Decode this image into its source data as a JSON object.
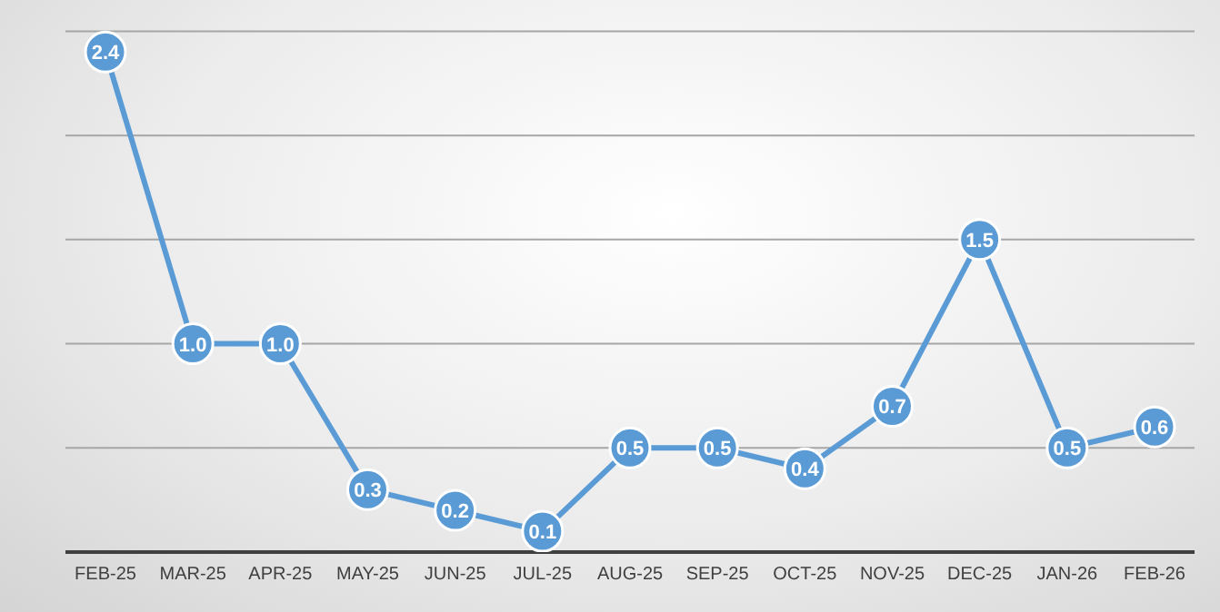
{
  "chart_data": {
    "type": "line",
    "categories": [
      "FEB-25",
      "MAR-25",
      "APR-25",
      "MAY-25",
      "JUN-25",
      "JUL-25",
      "AUG-25",
      "SEP-25",
      "OCT-25",
      "NOV-25",
      "DEC-25",
      "JAN-26",
      "FEB-26"
    ],
    "series": [
      {
        "color": "#5b9bd5",
        "values": [
          2.4,
          1.0,
          1.0,
          0.3,
          0.2,
          0.1,
          0.5,
          0.5,
          0.4,
          0.7,
          1.5,
          0.5,
          0.6
        ],
        "value_labels": [
          "2.4",
          "1.0",
          "1.0",
          "0.3",
          "0.2",
          "0.1",
          "0.5",
          "0.5",
          "0.4",
          "0.7",
          "1.5",
          "0.5",
          "0.6"
        ]
      }
    ],
    "ylim": [
      0,
      2.65
    ],
    "yticks": [
      {
        "value": 0,
        "label": null
      },
      {
        "value": 0.5,
        "label": null
      },
      {
        "value": 1,
        "label": null
      },
      {
        "value": 1.5,
        "label": null
      },
      {
        "value": 2,
        "label": null
      },
      {
        "value": 2.5,
        "label": null
      }
    ],
    "grid": "y",
    "tick_labels": "x",
    "marker": "circle",
    "legend": false
  }
}
